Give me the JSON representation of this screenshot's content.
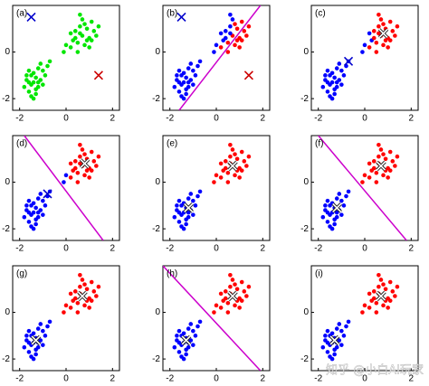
{
  "watermark": "知乎 @小白AI玩家",
  "points": {
    "x": [
      -1.5,
      -1.3,
      -1.6,
      -1.2,
      -1.4,
      -1.7,
      -1.1,
      -1.3,
      -1.5,
      -1.0,
      -1.8,
      -1.2,
      -1.4,
      -0.9,
      -1.6,
      -1.3,
      -1.1,
      -1.5,
      -0.8,
      -1.7,
      -1.2,
      -1.4,
      -0.7,
      -1.0,
      -1.6,
      0.7,
      0.9,
      0.5,
      1.0,
      0.6,
      0.3,
      1.2,
      0.8,
      0.4,
      1.1,
      0.2,
      0.9,
      0.6,
      1.3,
      0.0,
      0.7,
      1.0,
      0.4,
      0.8,
      -0.1,
      1.4,
      0.5,
      0.2,
      1.1,
      0.6
    ],
    "y": [
      -1.4,
      -1.1,
      -1.7,
      -1.5,
      -0.9,
      -1.2,
      -1.2,
      -1.8,
      -1.0,
      -0.8,
      -1.5,
      -0.7,
      -1.3,
      -1.0,
      -0.8,
      -1.6,
      -0.5,
      -1.9,
      -0.6,
      -1.0,
      -1.3,
      -2.0,
      -0.4,
      -1.4,
      -1.3,
      0.7,
      1.0,
      0.4,
      0.6,
      1.1,
      0.5,
      0.9,
      0.3,
      0.9,
      1.3,
      0.2,
      0.5,
      0.8,
      0.7,
      0.3,
      1.4,
      0.2,
      0.6,
      1.2,
      0.0,
      1.1,
      0.0,
      0.8,
      0.5,
      1.6
    ]
  },
  "chart_data": [
    {
      "type": "scatter",
      "label": "(a)",
      "xlim": [
        -2.3,
        2.3
      ],
      "ylim": [
        -2.5,
        2.0
      ],
      "xticks": [
        -2,
        0,
        2
      ],
      "yticks": [
        -2,
        0
      ],
      "colors": [
        "#00e600"
      ],
      "assign": [
        0,
        0,
        0,
        0,
        0,
        0,
        0,
        0,
        0,
        0,
        0,
        0,
        0,
        0,
        0,
        0,
        0,
        0,
        0,
        0,
        0,
        0,
        0,
        0,
        0,
        0,
        0,
        0,
        0,
        0,
        0,
        0,
        0,
        0,
        0,
        0,
        0,
        0,
        0,
        0,
        0,
        0,
        0,
        0,
        0,
        0,
        0,
        0,
        0,
        0
      ],
      "centroids": {
        "x": [
          -1.5,
          1.4
        ],
        "y": [
          1.5,
          -1.0
        ],
        "colors": [
          "#0000cc",
          "#cc0000"
        ]
      }
    },
    {
      "type": "scatter",
      "label": "(b)",
      "xlim": [
        -2.3,
        2.3
      ],
      "ylim": [
        -2.5,
        2.0
      ],
      "xticks": [
        -2,
        0,
        2
      ],
      "yticks": [
        -2,
        0
      ],
      "colors": [
        "#0000ff",
        "#ff0000"
      ],
      "assign": [
        0,
        0,
        0,
        0,
        0,
        0,
        0,
        0,
        0,
        0,
        0,
        0,
        0,
        0,
        0,
        0,
        0,
        0,
        0,
        0,
        0,
        0,
        0,
        0,
        0,
        1,
        1,
        1,
        1,
        0,
        0,
        1,
        1,
        0,
        1,
        1,
        1,
        0,
        1,
        0,
        0,
        1,
        0,
        1,
        0,
        1,
        1,
        0,
        1,
        0
      ],
      "centroids": {
        "x": [
          -1.5,
          1.4
        ],
        "y": [
          1.5,
          -1.0
        ],
        "colors": [
          "#0000cc",
          "#cc0000"
        ]
      },
      "boundary": {
        "x": [
          -1.6,
          1.9
        ],
        "y": [
          -2.5,
          2.0
        ],
        "color": "#cc00cc"
      }
    },
    {
      "type": "scatter",
      "label": "(c)",
      "xlim": [
        -2.3,
        2.3
      ],
      "ylim": [
        -2.5,
        2.0
      ],
      "xticks": [
        -2,
        0,
        2
      ],
      "yticks": [
        -2,
        0
      ],
      "colors": [
        "#0000ff",
        "#ff0000"
      ],
      "assign": [
        0,
        0,
        0,
        0,
        0,
        0,
        0,
        0,
        0,
        0,
        0,
        0,
        0,
        0,
        0,
        0,
        0,
        0,
        0,
        0,
        0,
        0,
        0,
        0,
        0,
        1,
        1,
        1,
        1,
        1,
        0,
        1,
        1,
        1,
        1,
        1,
        1,
        1,
        1,
        0,
        1,
        1,
        1,
        1,
        0,
        1,
        1,
        0,
        1,
        1
      ],
      "centroids": {
        "x": [
          -0.7,
          0.8
        ],
        "y": [
          -0.4,
          0.8
        ],
        "colors": [
          "#0000cc",
          "#ffffff"
        ]
      }
    },
    {
      "type": "scatter",
      "label": "(d)",
      "xlim": [
        -2.3,
        2.3
      ],
      "ylim": [
        -2.5,
        2.0
      ],
      "xticks": [
        -2,
        0,
        2
      ],
      "yticks": [
        -2,
        0
      ],
      "colors": [
        "#0000ff",
        "#ff0000"
      ],
      "assign": [
        0,
        0,
        0,
        0,
        0,
        0,
        0,
        0,
        0,
        0,
        0,
        0,
        0,
        0,
        0,
        0,
        0,
        0,
        0,
        0,
        0,
        0,
        0,
        0,
        0,
        1,
        1,
        1,
        1,
        1,
        1,
        1,
        1,
        1,
        1,
        1,
        1,
        1,
        1,
        0,
        1,
        1,
        1,
        1,
        0,
        1,
        1,
        1,
        1,
        1
      ],
      "centroids": {
        "x": [
          -0.8,
          0.8
        ],
        "y": [
          -0.5,
          0.8
        ],
        "colors": [
          "#0000cc",
          "#ffffff"
        ]
      },
      "boundary": {
        "x": [
          -1.8,
          1.6
        ],
        "y": [
          2.0,
          -2.5
        ],
        "color": "#cc00cc"
      }
    },
    {
      "type": "scatter",
      "label": "(e)",
      "xlim": [
        -2.3,
        2.3
      ],
      "ylim": [
        -2.5,
        2.0
      ],
      "xticks": [
        -2,
        0,
        2
      ],
      "yticks": [
        -2,
        0
      ],
      "colors": [
        "#0000ff",
        "#ff0000"
      ],
      "assign": [
        0,
        0,
        0,
        0,
        0,
        0,
        0,
        0,
        0,
        0,
        0,
        0,
        0,
        0,
        0,
        0,
        0,
        0,
        0,
        0,
        0,
        0,
        0,
        0,
        0,
        1,
        1,
        1,
        1,
        1,
        1,
        1,
        1,
        1,
        1,
        1,
        1,
        1,
        1,
        1,
        1,
        1,
        1,
        1,
        1,
        1,
        1,
        1,
        1,
        1
      ],
      "centroids": {
        "x": [
          -1.2,
          0.7
        ],
        "y": [
          -1.1,
          0.7
        ],
        "colors": [
          "#ffffff",
          "#ffffff"
        ]
      }
    },
    {
      "type": "scatter",
      "label": "(f)",
      "xlim": [
        -2.3,
        2.3
      ],
      "ylim": [
        -2.5,
        2.0
      ],
      "xticks": [
        -2,
        0,
        2
      ],
      "yticks": [
        -2,
        0
      ],
      "colors": [
        "#0000ff",
        "#ff0000"
      ],
      "assign": [
        0,
        0,
        0,
        0,
        0,
        0,
        0,
        0,
        0,
        0,
        0,
        0,
        0,
        0,
        0,
        0,
        0,
        0,
        0,
        0,
        0,
        0,
        0,
        0,
        0,
        1,
        1,
        1,
        1,
        1,
        1,
        1,
        1,
        1,
        1,
        1,
        1,
        1,
        1,
        1,
        1,
        1,
        1,
        1,
        1,
        1,
        1,
        1,
        1,
        1
      ],
      "centroids": {
        "x": [
          -1.2,
          0.7
        ],
        "y": [
          -1.1,
          0.7
        ],
        "colors": [
          "#ffffff",
          "#ffffff"
        ]
      },
      "boundary": {
        "x": [
          -2.0,
          1.8
        ],
        "y": [
          2.0,
          -2.5
        ],
        "color": "#cc00cc"
      }
    },
    {
      "type": "scatter",
      "label": "(g)",
      "xlim": [
        -2.3,
        2.3
      ],
      "ylim": [
        -2.5,
        2.0
      ],
      "xticks": [
        -2,
        0,
        2
      ],
      "yticks": [
        -2,
        0
      ],
      "colors": [
        "#0000ff",
        "#ff0000"
      ],
      "assign": [
        0,
        0,
        0,
        0,
        0,
        0,
        0,
        0,
        0,
        0,
        0,
        0,
        0,
        0,
        0,
        0,
        0,
        0,
        0,
        0,
        0,
        0,
        0,
        0,
        0,
        1,
        1,
        1,
        1,
        1,
        1,
        1,
        1,
        1,
        1,
        1,
        1,
        1,
        1,
        1,
        1,
        1,
        1,
        1,
        1,
        1,
        1,
        1,
        1,
        1
      ],
      "centroids": {
        "x": [
          -1.3,
          0.7
        ],
        "y": [
          -1.2,
          0.7
        ],
        "colors": [
          "#ffffff",
          "#ffffff"
        ]
      }
    },
    {
      "type": "scatter",
      "label": "(h)",
      "xlim": [
        -2.3,
        2.3
      ],
      "ylim": [
        -2.5,
        2.0
      ],
      "xticks": [
        -2,
        0,
        2
      ],
      "yticks": [
        -2,
        0
      ],
      "colors": [
        "#0000ff",
        "#ff0000"
      ],
      "assign": [
        0,
        0,
        0,
        0,
        0,
        0,
        0,
        0,
        0,
        0,
        0,
        0,
        0,
        0,
        0,
        0,
        0,
        0,
        0,
        0,
        0,
        0,
        0,
        0,
        0,
        1,
        1,
        1,
        1,
        1,
        1,
        1,
        1,
        1,
        1,
        1,
        1,
        1,
        1,
        1,
        1,
        1,
        1,
        1,
        1,
        1,
        1,
        1,
        1,
        1
      ],
      "centroids": {
        "x": [
          -1.3,
          0.7
        ],
        "y": [
          -1.2,
          0.7
        ],
        "colors": [
          "#ffffff",
          "#ffffff"
        ]
      },
      "boundary": {
        "x": [
          -2.3,
          1.9
        ],
        "y": [
          2.0,
          -2.5
        ],
        "color": "#cc00cc"
      }
    },
    {
      "type": "scatter",
      "label": "(i)",
      "xlim": [
        -2.3,
        2.3
      ],
      "ylim": [
        -2.5,
        2.0
      ],
      "xticks": [
        -2,
        0,
        2
      ],
      "yticks": [
        -2,
        0
      ],
      "colors": [
        "#0000ff",
        "#ff0000"
      ],
      "assign": [
        0,
        0,
        0,
        0,
        0,
        0,
        0,
        0,
        0,
        0,
        0,
        0,
        0,
        0,
        0,
        0,
        0,
        0,
        0,
        0,
        0,
        0,
        0,
        0,
        0,
        1,
        1,
        1,
        1,
        1,
        1,
        1,
        1,
        1,
        1,
        1,
        1,
        1,
        1,
        1,
        1,
        1,
        1,
        1,
        1,
        1,
        1,
        1,
        1,
        1
      ],
      "centroids": {
        "x": [
          -1.3,
          0.7
        ],
        "y": [
          -1.2,
          0.7
        ],
        "colors": [
          "#ffffff",
          "#ffffff"
        ]
      }
    }
  ]
}
